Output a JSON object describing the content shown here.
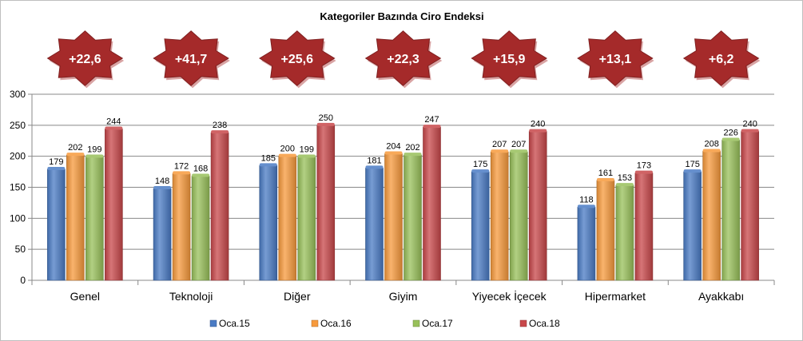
{
  "chart_data": {
    "type": "bar",
    "title": "Kategoriler Bazında Ciro Endeksi",
    "xlabel": "",
    "ylabel": "",
    "ylim": [
      0,
      300
    ],
    "yticks": [
      0,
      50,
      100,
      150,
      200,
      250,
      300
    ],
    "grid": true,
    "legend_position": "bottom",
    "categories": [
      "Genel",
      "Teknoloji",
      "Diğer",
      "Giyim",
      "Yiyecek İçecek",
      "Hipermarket",
      "Ayakkabı"
    ],
    "series": [
      {
        "name": "Oca.15",
        "color": "#4a7bc4",
        "values": [
          179,
          148,
          185,
          181,
          175,
          118,
          175
        ]
      },
      {
        "name": "Oca.16",
        "color": "#f79a3c",
        "values": [
          202,
          172,
          200,
          204,
          207,
          161,
          208
        ]
      },
      {
        "name": "Oca.17",
        "color": "#98c05a",
        "values": [
          199,
          168,
          199,
          202,
          207,
          153,
          226
        ]
      },
      {
        "name": "Oca.18",
        "color": "#c8474a",
        "values": [
          244,
          238,
          250,
          247,
          240,
          173,
          240
        ]
      }
    ],
    "annotations": [
      "+22,6",
      "+41,7",
      "+25,6",
      "+22,3",
      "+15,9",
      "+13,1",
      "+6,2"
    ],
    "annotation_color": "#a52a2a"
  }
}
